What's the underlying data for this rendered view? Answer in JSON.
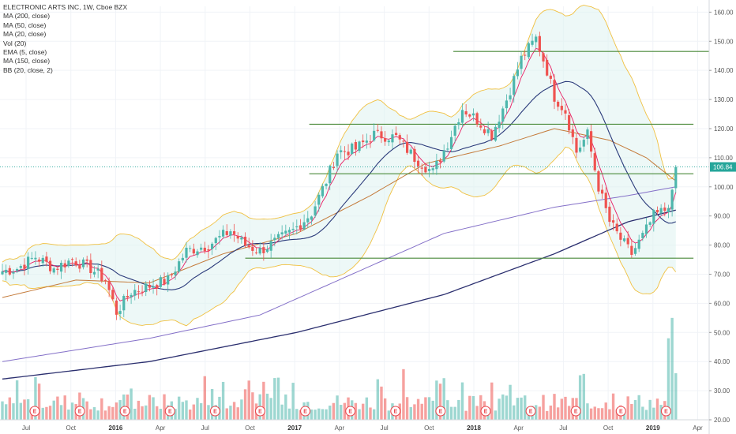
{
  "legend": {
    "title": "ELECTRONIC ARTS INC, 1W, Cboe BZX",
    "items": [
      "MA (200, close)",
      "MA (50, close)",
      "MA (20, close)",
      "Vol (20)",
      "EMA (5, close)",
      "MA (150, close)",
      "BB (20, close, 2)"
    ]
  },
  "chart_data": {
    "type": "candlestick",
    "x_labels": [
      "Jul",
      "Oct",
      "2016",
      "Apr",
      "Jul",
      "Oct",
      "2017",
      "Apr",
      "Jul",
      "Oct",
      "2018",
      "Apr",
      "Jul",
      "Oct",
      "2019",
      "Apr"
    ],
    "x_label_bold": [
      false,
      false,
      true,
      false,
      false,
      false,
      true,
      false,
      false,
      false,
      true,
      false,
      false,
      false,
      true,
      false
    ],
    "y_ticks": [
      "160.00",
      "150.00",
      "140.00",
      "130.00",
      "120.00",
      "110.00",
      "100.00",
      "90.00",
      "80.00",
      "70.00",
      "60.00",
      "50.00",
      "40.00",
      "30.00",
      "20.00"
    ],
    "ylim": [
      20,
      162
    ],
    "current_price": "106.84",
    "earnings_marker": "E",
    "earnings_count": 15,
    "horizontal_levels": [
      {
        "value": 146.5,
        "from": "2017-10",
        "to": "2019-02"
      },
      {
        "value": 121.5,
        "from": "2017-01",
        "to": "2019-01"
      },
      {
        "value": 104.5,
        "from": "2017-01",
        "to": "2019-01"
      },
      {
        "value": 75.5,
        "from": "2016-09",
        "to": "2019-01"
      }
    ],
    "price_anchors": [
      {
        "t": 0,
        "v": 71
      },
      {
        "t": 4,
        "v": 72
      },
      {
        "t": 9,
        "v": 76
      },
      {
        "t": 14,
        "v": 72
      },
      {
        "t": 19,
        "v": 75
      },
      {
        "t": 24,
        "v": 72
      },
      {
        "t": 28,
        "v": 68
      },
      {
        "t": 31,
        "v": 57
      },
      {
        "t": 35,
        "v": 64
      },
      {
        "t": 40,
        "v": 66
      },
      {
        "t": 45,
        "v": 68
      },
      {
        "t": 50,
        "v": 78
      },
      {
        "t": 56,
        "v": 80
      },
      {
        "t": 62,
        "v": 85
      },
      {
        "t": 66,
        "v": 80
      },
      {
        "t": 70,
        "v": 78
      },
      {
        "t": 74,
        "v": 81
      },
      {
        "t": 79,
        "v": 85
      },
      {
        "t": 84,
        "v": 91
      },
      {
        "t": 88,
        "v": 102
      },
      {
        "t": 91,
        "v": 112
      },
      {
        "t": 96,
        "v": 113
      },
      {
        "t": 101,
        "v": 118
      },
      {
        "t": 107,
        "v": 117
      },
      {
        "t": 112,
        "v": 110
      },
      {
        "t": 117,
        "v": 105
      },
      {
        "t": 121,
        "v": 115
      },
      {
        "t": 125,
        "v": 127
      },
      {
        "t": 129,
        "v": 123
      },
      {
        "t": 133,
        "v": 118
      },
      {
        "t": 137,
        "v": 130
      },
      {
        "t": 141,
        "v": 144
      },
      {
        "t": 145,
        "v": 151
      },
      {
        "t": 148,
        "v": 140
      },
      {
        "t": 150,
        "v": 131
      },
      {
        "t": 153,
        "v": 126
      },
      {
        "t": 156,
        "v": 112
      },
      {
        "t": 159,
        "v": 118
      },
      {
        "t": 162,
        "v": 100
      },
      {
        "t": 165,
        "v": 88
      },
      {
        "t": 168,
        "v": 82
      },
      {
        "t": 171,
        "v": 77
      },
      {
        "t": 174,
        "v": 83
      },
      {
        "t": 177,
        "v": 90
      },
      {
        "t": 180,
        "v": 92
      },
      {
        "t": 182,
        "v": 97
      },
      {
        "t": 183,
        "v": 106.84
      }
    ],
    "ma200": [
      {
        "t": 0,
        "v": 34
      },
      {
        "t": 40,
        "v": 40
      },
      {
        "t": 80,
        "v": 50
      },
      {
        "t": 120,
        "v": 63
      },
      {
        "t": 150,
        "v": 77
      },
      {
        "t": 170,
        "v": 88
      },
      {
        "t": 183,
        "v": 92
      }
    ],
    "ma150": [
      {
        "t": 0,
        "v": 40
      },
      {
        "t": 40,
        "v": 48
      },
      {
        "t": 70,
        "v": 56
      },
      {
        "t": 95,
        "v": 70
      },
      {
        "t": 120,
        "v": 84
      },
      {
        "t": 150,
        "v": 93
      },
      {
        "t": 170,
        "v": 97
      },
      {
        "t": 183,
        "v": 100
      }
    ],
    "ma50": [
      {
        "t": 0,
        "v": 62
      },
      {
        "t": 20,
        "v": 68
      },
      {
        "t": 40,
        "v": 67
      },
      {
        "t": 60,
        "v": 77
      },
      {
        "t": 80,
        "v": 84
      },
      {
        "t": 100,
        "v": 97
      },
      {
        "t": 115,
        "v": 108
      },
      {
        "t": 135,
        "v": 114
      },
      {
        "t": 150,
        "v": 120
      },
      {
        "t": 165,
        "v": 116
      },
      {
        "t": 175,
        "v": 110
      },
      {
        "t": 183,
        "v": 102
      }
    ],
    "colors": {
      "up": "#4db6ac",
      "down": "#ef5350",
      "ma200": "#2a2e6e",
      "ma150": "#8470c8",
      "ma50": "#c47a3a",
      "ma20": "#2a3a7a",
      "ema5": "#e91e63",
      "bb": "#f0c040",
      "bb_fill": "#dff2f0",
      "level": "#4a8a3a",
      "price_line": "#26a69a"
    }
  }
}
